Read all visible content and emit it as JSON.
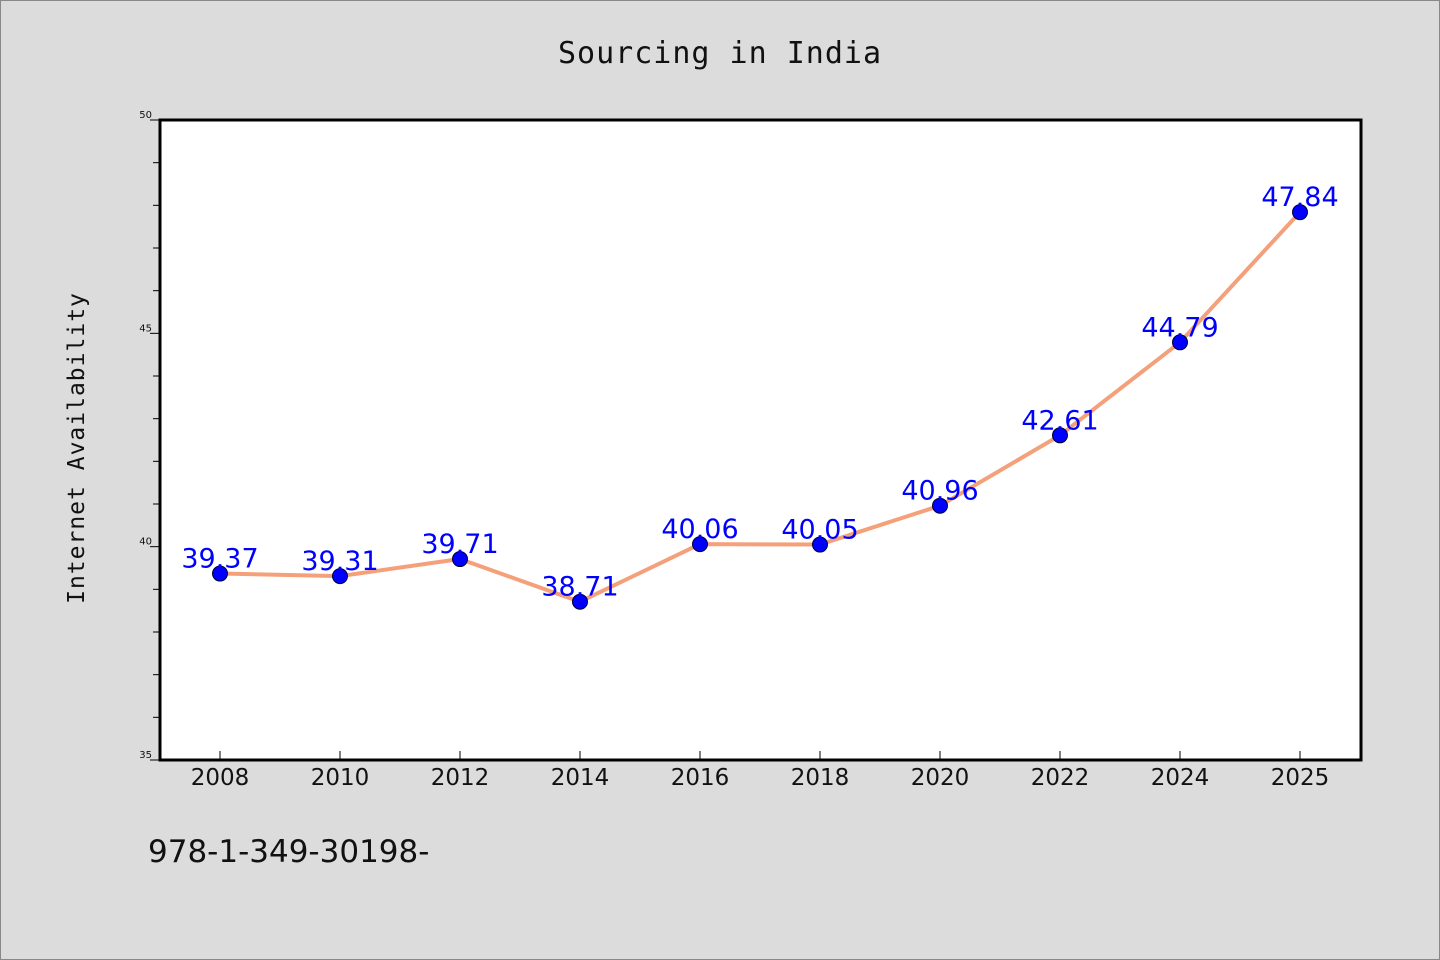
{
  "chart_data": {
    "type": "line",
    "title": "Sourcing in India",
    "xlabel": "",
    "ylabel": "Internet Availability",
    "x": [
      "2008",
      "2010",
      "2012",
      "2014",
      "2016",
      "2018",
      "2020",
      "2022",
      "2024",
      "2025"
    ],
    "series": [
      {
        "values": [
          39.37,
          39.31,
          39.71,
          38.71,
          40.06,
          40.05,
          40.96,
          42.61,
          44.79,
          47.84
        ],
        "labels": [
          "39.37",
          "39.31",
          "39.71",
          "38.71",
          "40.06",
          "40.05",
          "40.96",
          "42.61",
          "44.79",
          "47.84"
        ],
        "line_color": "#f4a07a",
        "marker_color": "#0000ff"
      }
    ],
    "ylim": [
      35,
      50
    ],
    "yticks": [
      "35",
      "40",
      "45",
      "50"
    ],
    "grid": false,
    "legend": "none"
  },
  "footer": {
    "code": "978-1-349-30198-"
  }
}
